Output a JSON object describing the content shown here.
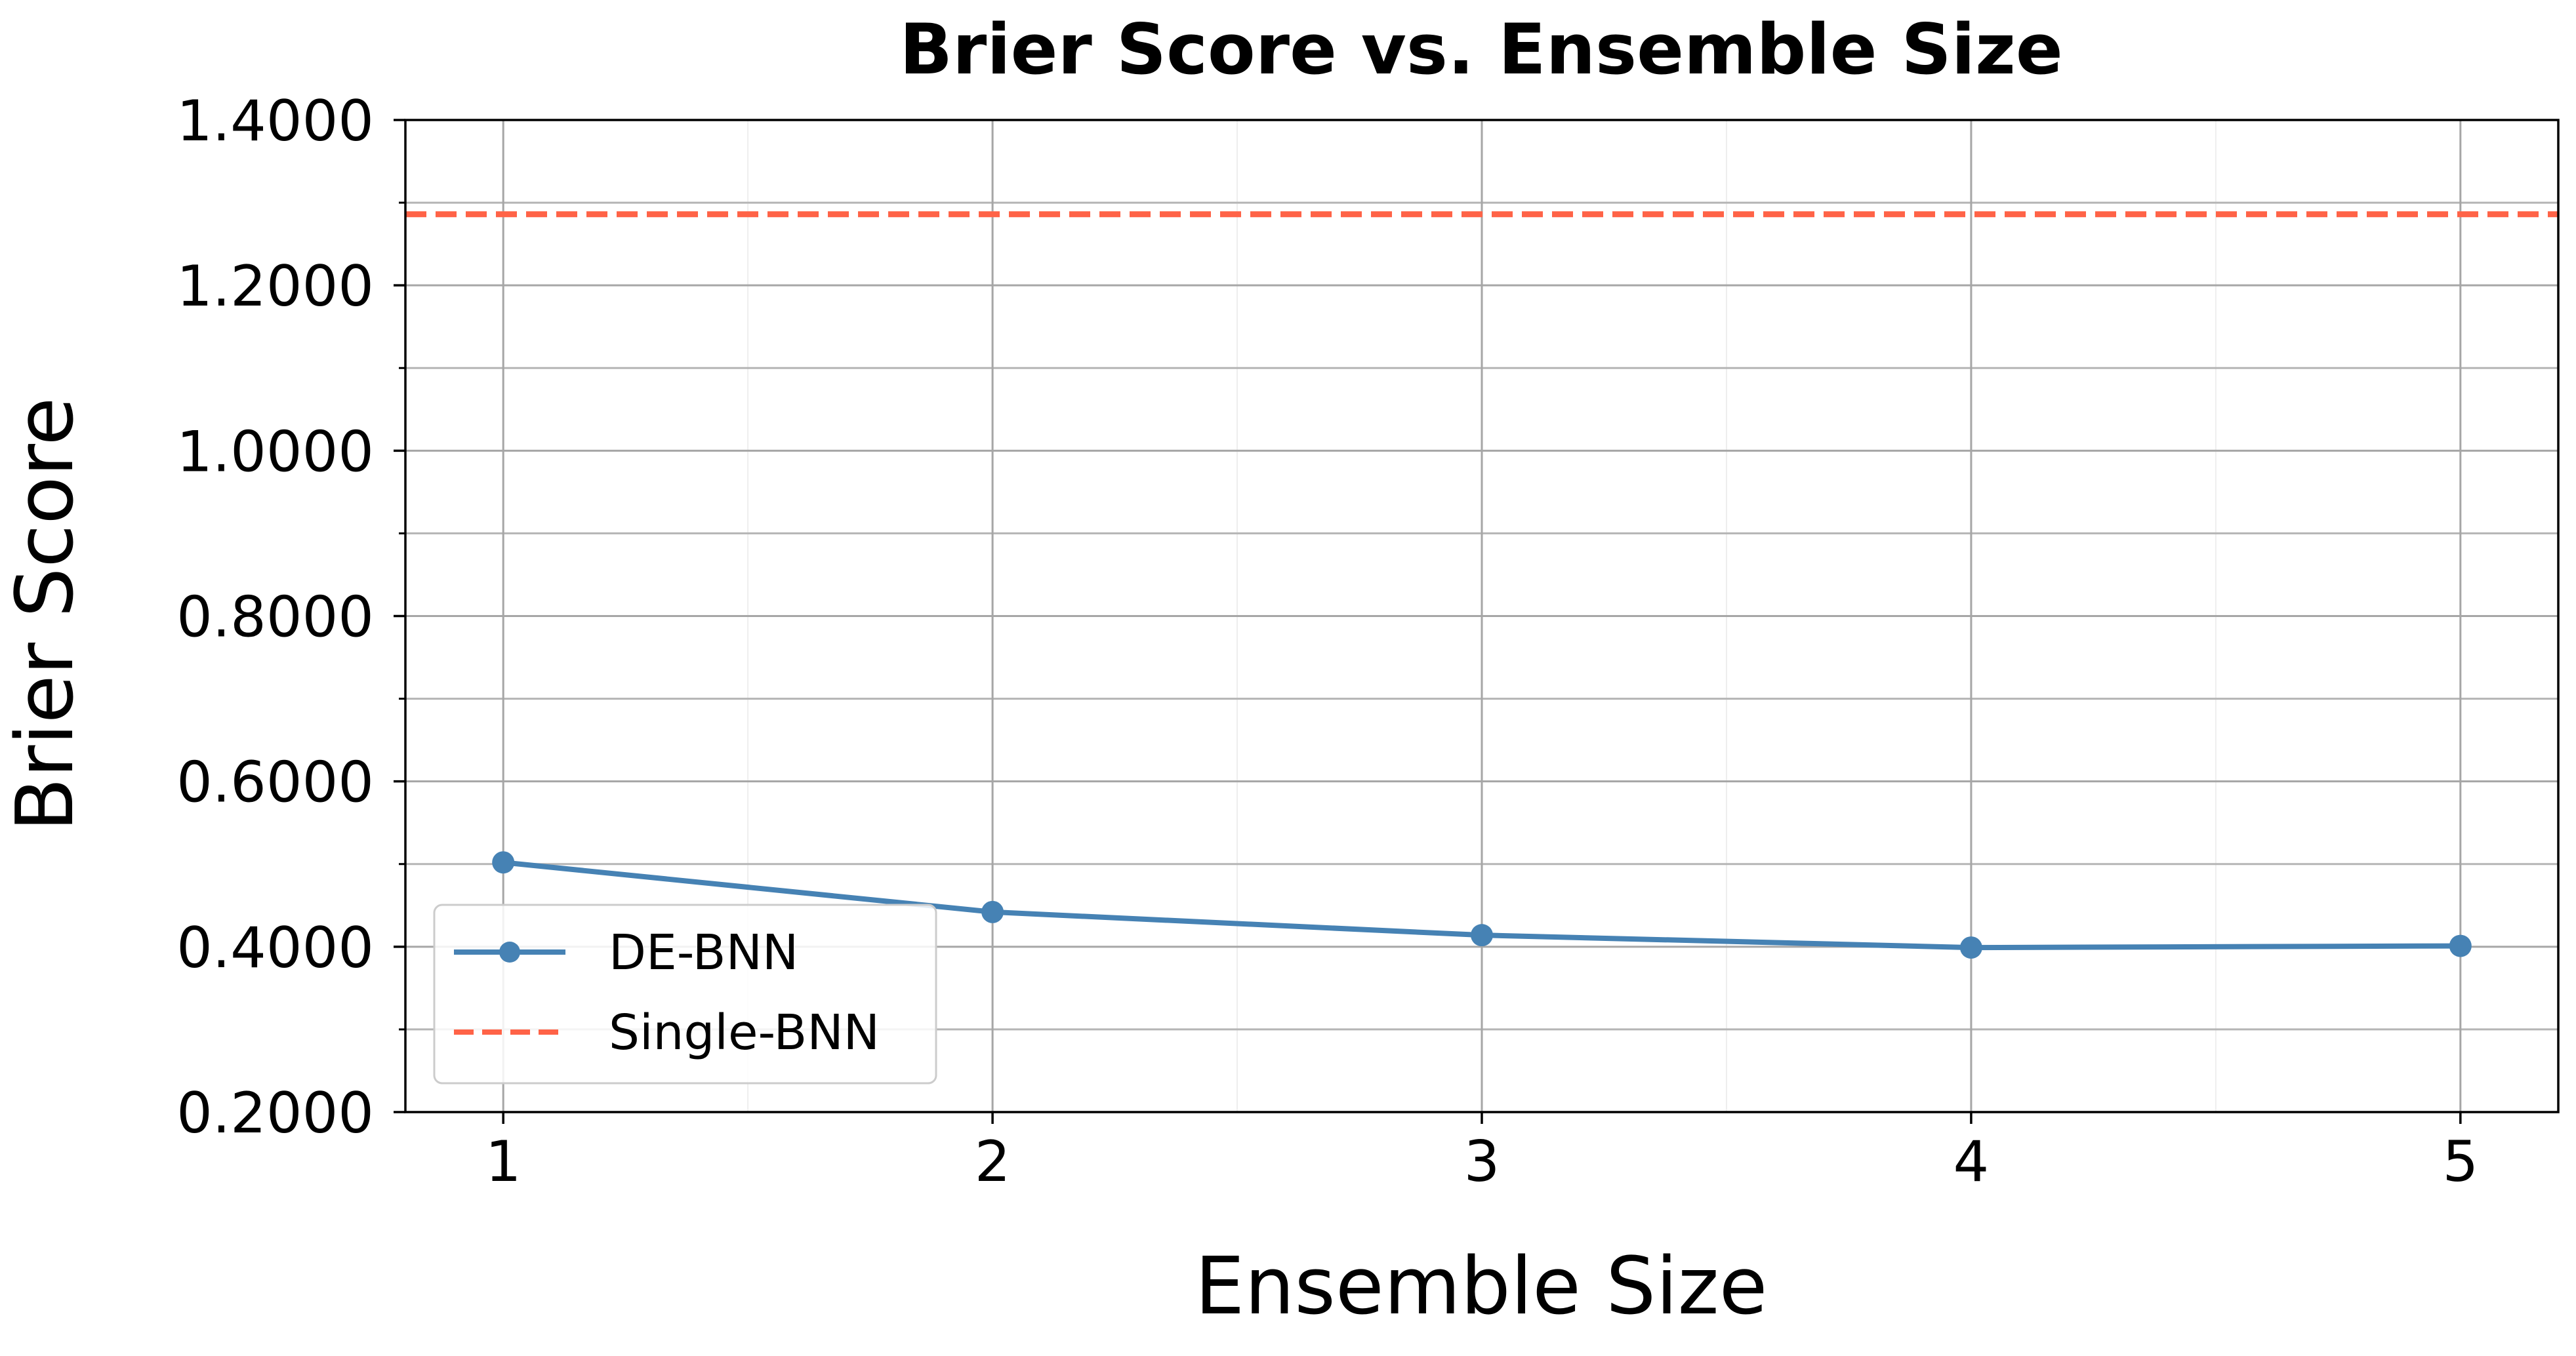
{
  "chart_data": {
    "type": "line",
    "title": "Brier Score vs. Ensemble Size",
    "xlabel": "Ensemble Size",
    "ylabel": "Brier Score",
    "x": [
      1,
      2,
      3,
      4,
      5
    ],
    "xlim": [
      0.8,
      5.2
    ],
    "ylim": [
      0.2,
      1.4
    ],
    "xticks": [
      "1",
      "2",
      "3",
      "4",
      "5"
    ],
    "yticks": [
      {
        "value": 0.2,
        "label": "0.2000"
      },
      {
        "value": 0.4,
        "label": "0.4000"
      },
      {
        "value": 0.6,
        "label": "0.6000"
      },
      {
        "value": 0.8,
        "label": "0.8000"
      },
      {
        "value": 1.0,
        "label": "1.0000"
      },
      {
        "value": 1.2,
        "label": "1.2000"
      },
      {
        "value": 1.4,
        "label": "1.4000"
      }
    ],
    "y_minor_ticks": [
      0.3,
      0.5,
      0.7,
      0.9,
      1.1,
      1.3
    ],
    "x_minor_ticks": [
      1.5,
      2.5,
      3.5,
      4.5
    ],
    "grid": true,
    "legend_position": "lower-left",
    "series": [
      {
        "name": "DE-BNN",
        "style": "solid-with-markers",
        "color": "#4682b4",
        "values": [
          0.502,
          0.442,
          0.414,
          0.399,
          0.401
        ]
      },
      {
        "name": "Single-BNN",
        "style": "dashed-horizontal",
        "color": "#ff6347",
        "value": 1.286
      }
    ]
  }
}
